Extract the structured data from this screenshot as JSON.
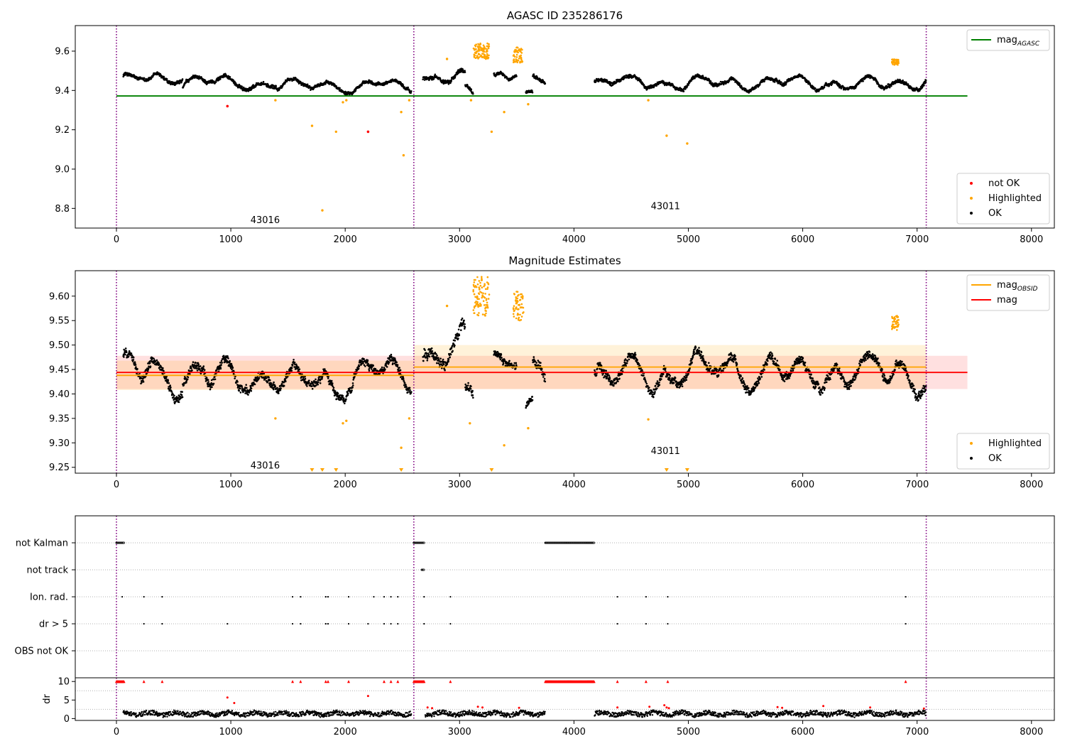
{
  "figure": {
    "panel1_title": "AGASC ID 235286176",
    "panel2_title": "Magnitude Estimates"
  },
  "colors": {
    "ok": "#000000",
    "not_ok": "#ff0000",
    "highlighted": "#ffa500",
    "mag_agasc": "#008000",
    "mag": "#ff0000",
    "mag_obsid": "#ffa500",
    "obs_boundary": "#800080",
    "grid": "#b0b0b0"
  },
  "chart_data": [
    {
      "id": "agasc",
      "type": "scatter",
      "title": "AGASC ID 235286176",
      "xlim": [
        -360,
        8200
      ],
      "ylim": [
        8.7,
        9.73
      ],
      "xticks": [
        0,
        1000,
        2000,
        3000,
        4000,
        5000,
        6000,
        7000,
        8000
      ],
      "yticks": [
        8.8,
        9.0,
        9.2,
        9.4,
        9.6
      ],
      "ytick_labels": [
        "8.8",
        "9.0",
        "9.2",
        "9.4",
        "9.6"
      ],
      "obs_boundaries": [
        0,
        2600,
        7080
      ],
      "obsids": [
        {
          "label": "43016",
          "x": 1300,
          "y": 8.74
        },
        {
          "label": "43011",
          "x": 4800,
          "y": 8.81
        }
      ],
      "lines": [
        {
          "name": "mag",
          "sub": "AGASC",
          "color_key": "mag_agasc",
          "y": 9.372,
          "x_range": [
            0,
            7440
          ]
        }
      ],
      "legends": [
        {
          "position": "top-right",
          "items": [
            {
              "kind": "line",
              "label": "mag",
              "sub": "AGASC",
              "color_key": "mag_agasc"
            }
          ]
        },
        {
          "position": "bottom-right",
          "items": [
            {
              "kind": "dot",
              "label": "not OK",
              "color_key": "not_ok"
            },
            {
              "kind": "dot",
              "label": "Highlighted",
              "color_key": "highlighted"
            },
            {
              "kind": "dot",
              "label": "OK",
              "color_key": "ok"
            }
          ]
        }
      ],
      "segments": [
        {
          "x_range": [
            60,
            580
          ],
          "base": 9.45,
          "amp": 0.04
        },
        {
          "x_range": [
            580,
            1400
          ],
          "base": 9.44,
          "amp": 0.04
        },
        {
          "x_range": [
            1400,
            2580
          ],
          "base": 9.43,
          "amp": 0.035
        },
        {
          "x_range": [
            2680,
            3050
          ],
          "base": 9.47,
          "amp": 0.05
        },
        {
          "x_range": [
            3050,
            3120
          ],
          "base": 9.39,
          "amp": 0.04
        },
        {
          "x_range": [
            3300,
            3500
          ],
          "base": 9.48,
          "amp": 0.03
        },
        {
          "x_range": [
            3580,
            3640
          ],
          "base": 9.37,
          "amp": 0.03
        },
        {
          "x_range": [
            3640,
            3750
          ],
          "base": 9.44,
          "amp": 0.04
        },
        {
          "x_range": [
            4180,
            7080
          ],
          "base": 9.44,
          "amp": 0.04
        }
      ],
      "highlighted_clusters": [
        {
          "x_range": [
            3120,
            3260
          ],
          "y_range": [
            9.56,
            9.64
          ]
        },
        {
          "x_range": [
            3470,
            3550
          ],
          "y_range": [
            9.54,
            9.62
          ]
        },
        {
          "x_range": [
            6780,
            6840
          ],
          "y_range": [
            9.53,
            9.56
          ]
        }
      ],
      "highlighted_points": [
        [
          1390,
          9.35
        ],
        [
          1710,
          9.22
        ],
        [
          1800,
          8.79
        ],
        [
          1920,
          9.19
        ],
        [
          1980,
          9.34
        ],
        [
          2010,
          9.35
        ],
        [
          2490,
          9.29
        ],
        [
          2510,
          9.07
        ],
        [
          2560,
          9.35
        ],
        [
          2890,
          9.56
        ],
        [
          3100,
          9.35
        ],
        [
          3280,
          9.19
        ],
        [
          3390,
          9.29
        ],
        [
          3600,
          9.33
        ],
        [
          4650,
          9.35
        ],
        [
          4810,
          9.17
        ],
        [
          4990,
          9.13
        ]
      ],
      "not_ok_points": [
        [
          970,
          9.32
        ],
        [
          2200,
          9.19
        ]
      ]
    },
    {
      "id": "mag",
      "type": "scatter",
      "title": "Magnitude Estimates",
      "xlim": [
        -360,
        8200
      ],
      "ylim": [
        9.238,
        9.652
      ],
      "xticks": [
        0,
        1000,
        2000,
        3000,
        4000,
        5000,
        6000,
        7000,
        8000
      ],
      "yticks": [
        9.25,
        9.3,
        9.35,
        9.4,
        9.45,
        9.5,
        9.55,
        9.6
      ],
      "ytick_labels": [
        "9.25",
        "9.30",
        "9.35",
        "9.40",
        "9.45",
        "9.50",
        "9.55",
        "9.60"
      ],
      "obs_boundaries": [
        0,
        2600,
        7080
      ],
      "obsids": [
        {
          "label": "43016",
          "x": 1300,
          "y": 9.253
        },
        {
          "label": "43011",
          "x": 4800,
          "y": 9.283
        }
      ],
      "lines": [
        {
          "name": "mag",
          "color_key": "mag",
          "y": 9.444,
          "x_range": [
            0,
            7440
          ]
        },
        {
          "name": "mag",
          "sub": "OBSID",
          "color_key": "mag_obsid",
          "y": 9.438,
          "x_range": [
            0,
            2600
          ]
        },
        {
          "name": "mag",
          "sub": "OBSID",
          "color_key": "mag_obsid",
          "y": 9.455,
          "x_range": [
            2600,
            7080
          ]
        }
      ],
      "bands": [
        {
          "color_key": "mag",
          "y_range": [
            9.41,
            9.478
          ],
          "x_range": [
            0,
            7440
          ],
          "opacity": 0.12
        },
        {
          "color_key": "mag_obsid",
          "y_range": [
            9.408,
            9.468
          ],
          "x_range": [
            0,
            2600
          ],
          "opacity": 0.15
        },
        {
          "color_key": "mag_obsid",
          "y_range": [
            9.41,
            9.5
          ],
          "x_range": [
            2600,
            7080
          ],
          "opacity": 0.15
        }
      ],
      "legends": [
        {
          "position": "top-right",
          "items": [
            {
              "kind": "line",
              "label": "mag",
              "sub": "OBSID",
              "color_key": "mag_obsid"
            },
            {
              "kind": "line",
              "label": "mag",
              "color_key": "mag"
            }
          ]
        },
        {
          "position": "bottom-right",
          "items": [
            {
              "kind": "dot",
              "label": "Highlighted",
              "color_key": "highlighted"
            },
            {
              "kind": "dot",
              "label": "OK",
              "color_key": "ok"
            }
          ]
        }
      ],
      "segments": [
        {
          "x_range": [
            60,
            580
          ],
          "base": 9.45,
          "amp": 0.04
        },
        {
          "x_range": [
            580,
            1400
          ],
          "base": 9.44,
          "amp": 0.04
        },
        {
          "x_range": [
            1400,
            2580
          ],
          "base": 9.43,
          "amp": 0.035
        },
        {
          "x_range": [
            2680,
            3050
          ],
          "base": 9.48,
          "amp": 0.05
        },
        {
          "x_range": [
            3050,
            3120
          ],
          "base": 9.38,
          "amp": 0.04
        },
        {
          "x_range": [
            3300,
            3500
          ],
          "base": 9.48,
          "amp": 0.03
        },
        {
          "x_range": [
            3580,
            3640
          ],
          "base": 9.36,
          "amp": 0.03
        },
        {
          "x_range": [
            3640,
            3750
          ],
          "base": 9.44,
          "amp": 0.04
        },
        {
          "x_range": [
            4180,
            7080
          ],
          "base": 9.44,
          "amp": 0.04
        }
      ],
      "highlighted_clusters": [
        {
          "x_range": [
            3120,
            3260
          ],
          "y_range": [
            9.56,
            9.64
          ]
        },
        {
          "x_range": [
            3470,
            3560
          ],
          "y_range": [
            9.55,
            9.61
          ]
        },
        {
          "x_range": [
            6780,
            6840
          ],
          "y_range": [
            9.53,
            9.56
          ]
        }
      ],
      "highlighted_points": [
        [
          1390,
          9.35
        ],
        [
          1980,
          9.34
        ],
        [
          2010,
          9.345
        ],
        [
          2490,
          9.29
        ],
        [
          2560,
          9.35
        ],
        [
          2890,
          9.58
        ],
        [
          3090,
          9.34
        ],
        [
          3390,
          9.295
        ],
        [
          3600,
          9.33
        ],
        [
          4650,
          9.348
        ]
      ],
      "highlighted_offscale_x": [
        1710,
        1800,
        1920,
        2490,
        3280,
        4810,
        4990
      ]
    },
    {
      "id": "flags",
      "type": "scatter",
      "xlim": [
        -360,
        8200
      ],
      "xticks": [
        0,
        1000,
        2000,
        3000,
        4000,
        5000,
        6000,
        7000,
        8000
      ],
      "rows": [
        "not Kalman",
        "not track",
        "Ion. rad.",
        "dr > 5",
        "OBS not OK"
      ],
      "obs_boundaries": [
        0,
        2600,
        7080
      ],
      "flag_ranges": [
        {
          "row": "not Kalman",
          "x_range": [
            0,
            70
          ]
        },
        {
          "row": "not Kalman",
          "x_range": [
            2600,
            2690
          ]
        },
        {
          "row": "not Kalman",
          "x_range": [
            3750,
            4180
          ]
        },
        {
          "row": "not track",
          "x_range": [
            2670,
            2690
          ]
        }
      ],
      "flag_points": [
        {
          "row": "Ion. rad.",
          "x": [
            50,
            240,
            400,
            1540,
            1610,
            1830,
            1850,
            2030,
            2250,
            2340,
            2400,
            2460,
            2690,
            2920,
            4380,
            4630,
            4820,
            6900
          ]
        },
        {
          "row": "dr > 5",
          "x": [
            240,
            400,
            970,
            1540,
            1610,
            1830,
            1850,
            2030,
            2200,
            2340,
            2400,
            2460,
            2690,
            2920,
            4380,
            4630,
            4820,
            6900
          ]
        }
      ]
    },
    {
      "id": "dr",
      "type": "scatter",
      "ylabel": "dr",
      "xlim": [
        -360,
        8200
      ],
      "ylim": [
        -0.5,
        11
      ],
      "yticks": [
        0,
        5,
        10
      ],
      "ytick_labels": [
        "0",
        "5",
        "10"
      ],
      "xticks": [
        0,
        1000,
        2000,
        3000,
        4000,
        5000,
        6000,
        7000,
        8000
      ],
      "obs_boundaries": [
        0,
        2600,
        7080
      ],
      "ok_segments": [
        {
          "x_range": [
            60,
            2580
          ],
          "base": 1.3,
          "amp": 0.9
        },
        {
          "x_range": [
            2700,
            3750
          ],
          "base": 1.3,
          "amp": 0.9
        },
        {
          "x_range": [
            4180,
            7080
          ],
          "base": 1.3,
          "amp": 0.9
        }
      ],
      "red_capped_x_ranges": [
        [
          0,
          70
        ],
        [
          2600,
          2690
        ],
        [
          3750,
          4180
        ]
      ],
      "red_capped_points": [
        240,
        400,
        1540,
        1610,
        1830,
        1850,
        2030,
        2340,
        2400,
        2460,
        2920,
        4380,
        4630,
        4820,
        6900
      ],
      "red_points": [
        [
          970,
          5.7
        ],
        [
          2200,
          6.1
        ],
        [
          1030,
          4.2
        ],
        [
          2720,
          3.0
        ],
        [
          2760,
          2.8
        ],
        [
          3160,
          3.2
        ],
        [
          3200,
          3.0
        ],
        [
          3520,
          2.9
        ],
        [
          4380,
          3.0
        ],
        [
          4660,
          3.2
        ],
        [
          4790,
          3.6
        ],
        [
          4810,
          3.0
        ],
        [
          4830,
          2.8
        ],
        [
          5780,
          3.1
        ],
        [
          5820,
          2.9
        ],
        [
          6180,
          3.4
        ],
        [
          6590,
          3.0
        ],
        [
          7060,
          2.7
        ]
      ]
    }
  ]
}
